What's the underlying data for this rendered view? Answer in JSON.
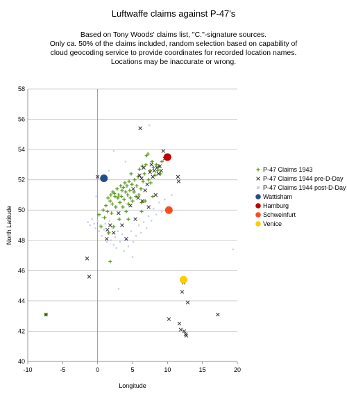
{
  "chart_data": {
    "type": "scatter",
    "title": "Luftwaffe claims against P-47's",
    "subtitle": [
      "Based on Tony Woods' claims list, \"C.\"-signature sources.",
      "Only ca. 50% of the claims included, random selection based on capability of",
      "cloud geocoding service to provide coordinates for recorded location names.",
      "Locations may be inaccurate or wrong."
    ],
    "xlabel": "Longitude",
    "ylabel": "North Latitude",
    "xlim": [
      -10,
      20
    ],
    "ylim": [
      40,
      58
    ],
    "xticks": [
      "-10",
      "-5",
      "0",
      "5",
      "10",
      "15",
      "20"
    ],
    "yticks": [
      "40",
      "42",
      "44",
      "46",
      "48",
      "50",
      "52",
      "54",
      "56",
      "58"
    ],
    "grid": "horizontal",
    "legend_position": "right",
    "series": [
      {
        "name": "P-47 Claims 1943",
        "marker": "plus",
        "color": "#5a9a1e",
        "points": [
          [
            -7.4,
            43.1
          ],
          [
            0.2,
            49.7
          ],
          [
            0.5,
            48.9
          ],
          [
            0.8,
            50.0
          ],
          [
            1.0,
            49.5
          ],
          [
            1.2,
            50.3
          ],
          [
            1.4,
            49.9
          ],
          [
            1.5,
            50.8
          ],
          [
            1.6,
            48.5
          ],
          [
            1.8,
            50.6
          ],
          [
            1.9,
            51.0
          ],
          [
            2.0,
            49.8
          ],
          [
            2.1,
            50.4
          ],
          [
            2.2,
            51.2
          ],
          [
            2.3,
            48.9
          ],
          [
            2.4,
            51.1
          ],
          [
            2.5,
            50.9
          ],
          [
            2.6,
            50.2
          ],
          [
            2.8,
            51.4
          ],
          [
            2.9,
            50.8
          ],
          [
            3.0,
            51.0
          ],
          [
            3.1,
            49.4
          ],
          [
            3.2,
            50.5
          ],
          [
            3.3,
            51.6
          ],
          [
            3.4,
            50.9
          ],
          [
            3.5,
            51.3
          ],
          [
            3.6,
            50.2
          ],
          [
            3.7,
            51.5
          ],
          [
            3.8,
            50.7
          ],
          [
            3.9,
            51.8
          ],
          [
            4.0,
            51.2
          ],
          [
            4.1,
            49.9
          ],
          [
            4.2,
            51.6
          ],
          [
            4.3,
            51.0
          ],
          [
            4.4,
            50.4
          ],
          [
            4.5,
            51.9
          ],
          [
            4.6,
            51.3
          ],
          [
            4.7,
            50.8
          ],
          [
            4.8,
            52.4
          ],
          [
            4.9,
            51.7
          ],
          [
            5.0,
            50.6
          ],
          [
            5.2,
            51.2
          ],
          [
            5.3,
            52.0
          ],
          [
            5.5,
            50.9
          ],
          [
            5.6,
            51.6
          ],
          [
            5.8,
            52.2
          ],
          [
            5.9,
            51.0
          ],
          [
            6.0,
            52.7
          ],
          [
            6.2,
            51.4
          ],
          [
            6.3,
            50.5
          ],
          [
            6.4,
            52.9
          ],
          [
            6.5,
            51.9
          ],
          [
            6.7,
            52.4
          ],
          [
            6.8,
            50.6
          ],
          [
            6.9,
            53.0
          ],
          [
            7.0,
            53.6
          ],
          [
            7.2,
            53.7
          ],
          [
            7.3,
            52.0
          ],
          [
            7.5,
            52.6
          ],
          [
            7.6,
            51.8
          ],
          [
            7.8,
            53.2
          ],
          [
            8.0,
            52.8
          ],
          [
            8.2,
            52.3
          ],
          [
            8.4,
            53.0
          ],
          [
            8.6,
            52.6
          ],
          [
            8.8,
            52.9
          ],
          [
            9.0,
            52.4
          ],
          [
            9.2,
            53.2
          ],
          [
            1.8,
            46.6
          ],
          [
            6.3,
            49.9
          ],
          [
            4.4,
            49.4
          ],
          [
            7.9,
            50.9
          ]
        ]
      },
      {
        "name": "P-47 Claims 1944 pre-D-Day",
        "marker": "x",
        "color": "#333333",
        "points": [
          [
            -7.4,
            43.1
          ],
          [
            -1.5,
            46.8
          ],
          [
            -1.2,
            45.6
          ],
          [
            0.0,
            52.2
          ],
          [
            1.3,
            48.1
          ],
          [
            1.4,
            48.7
          ],
          [
            1.8,
            49.0
          ],
          [
            2.3,
            48.5
          ],
          [
            3.0,
            49.8
          ],
          [
            3.5,
            49.0
          ],
          [
            4.1,
            48.1
          ],
          [
            4.7,
            50.3
          ],
          [
            5.1,
            51.4
          ],
          [
            5.4,
            49.4
          ],
          [
            5.8,
            50.8
          ],
          [
            6.0,
            52.3
          ],
          [
            6.1,
            55.4
          ],
          [
            6.3,
            52.1
          ],
          [
            6.4,
            50.6
          ],
          [
            6.6,
            52.8
          ],
          [
            6.8,
            51.3
          ],
          [
            7.1,
            51.7
          ],
          [
            7.3,
            50.2
          ],
          [
            7.5,
            52.5
          ],
          [
            7.7,
            53.0
          ],
          [
            7.9,
            52.2
          ],
          [
            8.1,
            52.6
          ],
          [
            8.3,
            51.0
          ],
          [
            8.5,
            52.8
          ],
          [
            8.7,
            52.4
          ],
          [
            8.9,
            52.9
          ],
          [
            9.1,
            52.6
          ],
          [
            9.4,
            53.9
          ],
          [
            9.6,
            53.4
          ],
          [
            10.2,
            42.8
          ],
          [
            11.5,
            52.2
          ],
          [
            11.6,
            51.9
          ],
          [
            11.7,
            42.5
          ],
          [
            11.9,
            42.1
          ],
          [
            12.1,
            44.6
          ],
          [
            12.3,
            45.2
          ],
          [
            12.4,
            42.0
          ],
          [
            12.6,
            41.8
          ],
          [
            12.7,
            41.7
          ],
          [
            12.9,
            43.9
          ],
          [
            17.2,
            43.1
          ]
        ]
      },
      {
        "name": "P-47 Claims 1944 post-D-Day",
        "marker": "dot",
        "color": "#c8d2ea",
        "points": [
          [
            -1.4,
            49.2
          ],
          [
            -1.1,
            49.0
          ],
          [
            -0.8,
            49.4
          ],
          [
            -0.5,
            49.1
          ],
          [
            -0.3,
            48.8
          ],
          [
            0.0,
            49.3
          ],
          [
            0.2,
            48.6
          ],
          [
            0.4,
            49.0
          ],
          [
            0.6,
            48.3
          ],
          [
            0.7,
            49.5
          ],
          [
            0.9,
            48.7
          ],
          [
            1.1,
            49.1
          ],
          [
            1.3,
            47.9
          ],
          [
            1.5,
            48.4
          ],
          [
            1.7,
            49.3
          ],
          [
            1.9,
            48.0
          ],
          [
            2.1,
            48.8
          ],
          [
            2.3,
            47.7
          ],
          [
            2.5,
            48.2
          ],
          [
            2.7,
            47.5
          ],
          [
            2.9,
            48.6
          ],
          [
            3.2,
            47.9
          ],
          [
            3.5,
            48.4
          ],
          [
            3.8,
            47.3
          ],
          [
            4.1,
            48.0
          ],
          [
            4.4,
            47.6
          ],
          [
            4.8,
            48.6
          ],
          [
            5.1,
            47.9
          ],
          [
            5.5,
            48.3
          ],
          [
            5.9,
            49.0
          ],
          [
            6.2,
            48.5
          ],
          [
            6.6,
            49.2
          ],
          [
            7.0,
            48.8
          ],
          [
            7.3,
            49.6
          ],
          [
            7.7,
            49.3
          ],
          [
            8.0,
            50.1
          ],
          [
            8.4,
            49.7
          ],
          [
            8.8,
            50.5
          ],
          [
            9.2,
            49.9
          ],
          [
            9.6,
            50.7
          ],
          [
            10.1,
            50.2
          ],
          [
            10.6,
            51.0
          ],
          [
            2.3,
            53.9
          ],
          [
            4.0,
            53.2
          ],
          [
            7.4,
            55.6
          ],
          [
            -0.2,
            50.9
          ],
          [
            1.6,
            52.6
          ],
          [
            3.0,
            44.8
          ],
          [
            19.4,
            47.4
          ],
          [
            5.0,
            46.9
          ]
        ]
      },
      {
        "name": "Wattisham",
        "marker": "circle",
        "color": "#1f4e8c",
        "points": [
          [
            0.9,
            52.1
          ]
        ]
      },
      {
        "name": "Hamburg",
        "marker": "circle",
        "color": "#c00000",
        "points": [
          [
            10.0,
            53.5
          ]
        ]
      },
      {
        "name": "Schweinfurt",
        "marker": "circle",
        "color": "#ff4a1a",
        "points": [
          [
            10.2,
            50.0
          ]
        ]
      },
      {
        "name": "Venice",
        "marker": "circle",
        "color": "#ffcc00",
        "points": [
          [
            12.3,
            45.4
          ]
        ]
      }
    ]
  }
}
